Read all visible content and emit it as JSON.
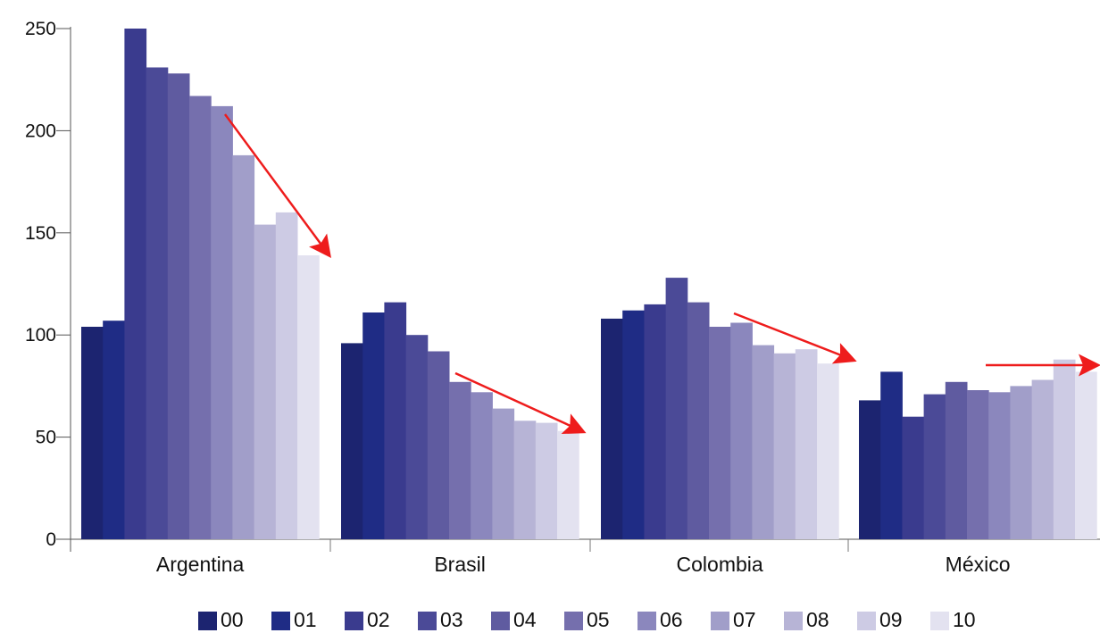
{
  "chart_data": {
    "type": "bar",
    "title": "",
    "xlabel": "",
    "ylabel": "",
    "ylim": [
      0,
      250
    ],
    "yticks": [
      0,
      50,
      100,
      150,
      200,
      250
    ],
    "grid": false,
    "legend_position": "bottom",
    "categories": [
      "Argentina",
      "Brasil",
      "Colombia",
      "México"
    ],
    "series": [
      {
        "name": "00",
        "color": "#1c2470",
        "values": [
          104,
          96,
          108,
          68
        ]
      },
      {
        "name": "01",
        "color": "#1f2c85",
        "values": [
          107,
          111,
          112,
          82
        ]
      },
      {
        "name": "02",
        "color": "#3a3b8e",
        "values": [
          250,
          116,
          115,
          60
        ]
      },
      {
        "name": "03",
        "color": "#4b4a97",
        "values": [
          231,
          100,
          128,
          71
        ]
      },
      {
        "name": "04",
        "color": "#5f5ba0",
        "values": [
          228,
          92,
          116,
          77
        ]
      },
      {
        "name": "05",
        "color": "#756fad",
        "values": [
          217,
          77,
          104,
          73
        ]
      },
      {
        "name": "06",
        "color": "#8b87bd",
        "values": [
          212,
          72,
          106,
          72
        ]
      },
      {
        "name": "07",
        "color": "#a19ec9",
        "values": [
          188,
          64,
          95,
          75
        ]
      },
      {
        "name": "08",
        "color": "#b7b4d6",
        "values": [
          154,
          58,
          91,
          78
        ]
      },
      {
        "name": "09",
        "color": "#cdcbe4",
        "values": [
          160,
          57,
          93,
          88
        ]
      },
      {
        "name": "10",
        "color": "#e3e2f0",
        "values": [
          139,
          53,
          86,
          82
        ]
      }
    ],
    "annotations": [
      {
        "type": "trend-arrow",
        "category": "Argentina",
        "color": "#ee1c1c"
      },
      {
        "type": "trend-arrow",
        "category": "Brasil",
        "color": "#ee1c1c"
      },
      {
        "type": "trend-arrow",
        "category": "Colombia",
        "color": "#ee1c1c"
      },
      {
        "type": "trend-arrow",
        "category": "México",
        "color": "#ee1c1c"
      }
    ]
  }
}
